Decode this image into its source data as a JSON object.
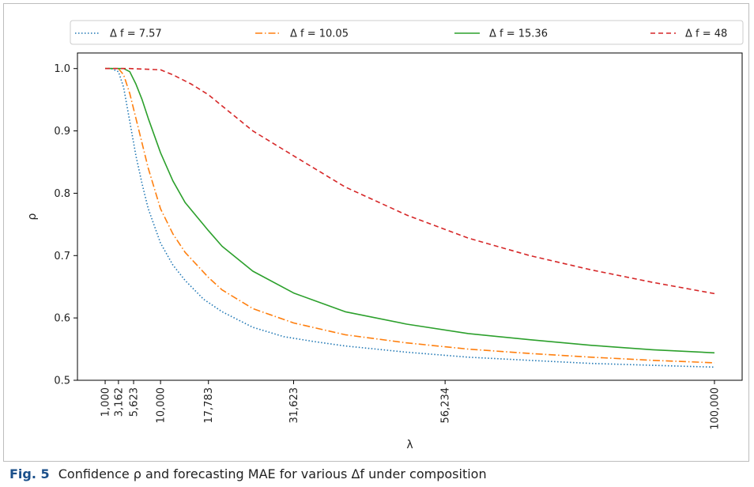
{
  "caption": {
    "fig_label": "Fig. 5",
    "text": "Confidence ρ and forecasting MAE for various Δf under composition"
  },
  "chart_data": {
    "type": "line",
    "title": "",
    "xlabel": "λ",
    "ylabel": "ρ",
    "xlim": [
      -3500,
      104500
    ],
    "ylim": [
      0.5,
      1.025
    ],
    "x_ticks": [
      1000,
      3162,
      5623,
      10000,
      17783,
      31623,
      56234,
      100000
    ],
    "x_tick_labels": [
      "1,000",
      "3,162",
      "5,623",
      "10,000",
      "17,783",
      "31,623",
      "56,234",
      "100,000"
    ],
    "y_ticks": [
      0.5,
      0.6,
      0.7,
      0.8,
      0.9,
      1.0
    ],
    "y_tick_labels": [
      "0.5",
      "0.6",
      "0.7",
      "0.8",
      "0.9",
      "1.0"
    ],
    "grid": false,
    "legend_position": "top",
    "series": [
      {
        "name": "Δ f = 7.57",
        "color": "#1f77b4",
        "dash": "dotted",
        "x": [
          1000,
          2000,
          3162,
          4000,
          5000,
          6000,
          7000,
          8000,
          10000,
          12000,
          14000,
          17000,
          20000,
          25000,
          30000,
          35000,
          40000,
          50000,
          60000,
          70000,
          80000,
          90000,
          100000
        ],
        "y": [
          1.0,
          1.0,
          0.995,
          0.97,
          0.915,
          0.86,
          0.815,
          0.775,
          0.72,
          0.685,
          0.66,
          0.63,
          0.61,
          0.585,
          0.57,
          0.562,
          0.555,
          0.545,
          0.537,
          0.532,
          0.527,
          0.524,
          0.521
        ]
      },
      {
        "name": "Δ f = 10.05",
        "color": "#ff7f0e",
        "dash": "dashdot",
        "x": [
          1000,
          2000,
          3162,
          4000,
          5000,
          6000,
          7000,
          8000,
          10000,
          12000,
          14000,
          17783,
          20000,
          25000,
          31623,
          40000,
          50000,
          60000,
          70000,
          80000,
          90000,
          100000
        ],
        "y": [
          1.0,
          1.0,
          1.0,
          0.99,
          0.96,
          0.92,
          0.88,
          0.84,
          0.775,
          0.735,
          0.705,
          0.665,
          0.645,
          0.615,
          0.592,
          0.573,
          0.56,
          0.55,
          0.543,
          0.537,
          0.532,
          0.528
        ]
      },
      {
        "name": "Δ f = 15.36",
        "color": "#2ca02c",
        "dash": "solid",
        "x": [
          1000,
          2000,
          3162,
          4000,
          5000,
          6000,
          7000,
          8000,
          10000,
          12000,
          14000,
          17783,
          20000,
          25000,
          31623,
          40000,
          50000,
          60000,
          70000,
          80000,
          90000,
          100000
        ],
        "y": [
          1.0,
          1.0,
          1.0,
          1.0,
          0.995,
          0.975,
          0.95,
          0.92,
          0.865,
          0.82,
          0.785,
          0.74,
          0.715,
          0.675,
          0.64,
          0.61,
          0.59,
          0.575,
          0.565,
          0.556,
          0.549,
          0.544
        ]
      },
      {
        "name": "Δ f = 48",
        "color": "#d62728",
        "dash": "dashed",
        "x": [
          1000,
          5000,
          10000,
          12000,
          15000,
          17783,
          20000,
          25000,
          31623,
          40000,
          50000,
          56234,
          60000,
          70000,
          80000,
          90000,
          100000
        ],
        "y": [
          1.0,
          1.0,
          0.998,
          0.99,
          0.975,
          0.958,
          0.94,
          0.9,
          0.86,
          0.81,
          0.765,
          0.742,
          0.728,
          0.7,
          0.677,
          0.657,
          0.639
        ]
      }
    ]
  }
}
